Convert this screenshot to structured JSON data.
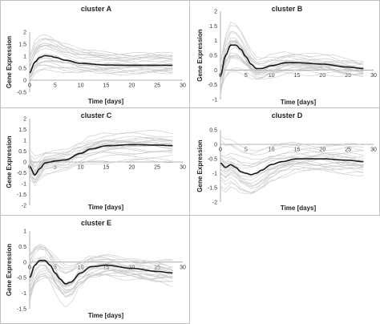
{
  "chart_data": [
    {
      "type": "line",
      "title": "cluster A",
      "xlabel": "Time [days]",
      "ylabel": "Gene Expression",
      "xlim": [
        0,
        30
      ],
      "ylim": [
        -0.5,
        2
      ],
      "x_ticks": [
        0,
        5,
        10,
        15,
        20,
        25,
        30
      ],
      "y_ticks": [
        -0.5,
        0,
        0.5,
        1,
        1.5,
        2
      ],
      "grid": false,
      "mean_series": {
        "x": [
          0,
          1,
          2,
          3,
          4,
          5,
          7,
          10,
          15,
          20,
          25,
          28
        ],
        "y": [
          0.3,
          0.75,
          0.95,
          1.02,
          1.0,
          0.95,
          0.83,
          0.7,
          0.63,
          0.62,
          0.62,
          0.62
        ]
      },
      "spread": 0.35
    },
    {
      "type": "line",
      "title": "cluster B",
      "xlabel": "Time [days]",
      "ylabel": "Gene Expression",
      "xlim": [
        0,
        30
      ],
      "ylim": [
        -1,
        2
      ],
      "x_ticks": [
        0,
        5,
        10,
        15,
        20,
        25,
        30
      ],
      "y_ticks": [
        -1,
        -0.5,
        0,
        0.5,
        1,
        1.5,
        2
      ],
      "grid": false,
      "mean_series": {
        "x": [
          0,
          1,
          2,
          3,
          4,
          5,
          6,
          7,
          8,
          10,
          13,
          15,
          20,
          25,
          28
        ],
        "y": [
          -0.2,
          0.5,
          0.85,
          0.85,
          0.7,
          0.45,
          0.2,
          0.05,
          0.05,
          0.15,
          0.25,
          0.25,
          0.2,
          0.1,
          0.05
        ]
      },
      "spread": 0.35
    },
    {
      "type": "line",
      "title": "cluster C",
      "xlabel": "Time [days]",
      "ylabel": "Gene Expression",
      "xlim": [
        0,
        30
      ],
      "ylim": [
        -2,
        2
      ],
      "x_ticks": [
        0,
        5,
        10,
        15,
        20,
        25,
        30
      ],
      "y_ticks": [
        -2,
        -1.5,
        -1,
        -0.5,
        0,
        0.5,
        1,
        1.5,
        2
      ],
      "grid": false,
      "mean_series": {
        "x": [
          0,
          1,
          2,
          3,
          4,
          5,
          7,
          10,
          12,
          15,
          20,
          25,
          28
        ],
        "y": [
          -0.2,
          -0.6,
          -0.3,
          -0.05,
          0.0,
          0.05,
          0.1,
          0.4,
          0.6,
          0.75,
          0.8,
          0.78,
          0.75
        ]
      },
      "spread": 0.45
    },
    {
      "type": "line",
      "title": "cluster D",
      "xlabel": "Time [days]",
      "ylabel": "Gene Expression",
      "xlim": [
        0,
        30
      ],
      "ylim": [
        -2,
        0.5
      ],
      "x_ticks": [
        0,
        5,
        10,
        15,
        20,
        25,
        30
      ],
      "y_ticks": [
        -2,
        -1.5,
        -1,
        -0.5,
        0,
        0.5
      ],
      "grid": false,
      "mean_series": {
        "x": [
          0,
          1,
          2,
          3,
          4,
          5,
          6,
          7,
          8,
          10,
          12,
          15,
          20,
          25,
          28
        ],
        "y": [
          -0.65,
          -0.8,
          -0.7,
          -0.8,
          -0.95,
          -1.0,
          -1.05,
          -1.0,
          -0.9,
          -0.7,
          -0.6,
          -0.5,
          -0.5,
          -0.55,
          -0.6
        ]
      },
      "spread": 0.35
    },
    {
      "type": "line",
      "title": "cluster E",
      "xlabel": "Time [days]",
      "ylabel": "Gene Expression",
      "xlim": [
        0,
        30
      ],
      "ylim": [
        -1.5,
        1
      ],
      "x_ticks": [
        0,
        5,
        10,
        15,
        20,
        25,
        30
      ],
      "y_ticks": [
        -1.5,
        -1,
        -0.5,
        0,
        0.5,
        1
      ],
      "grid": false,
      "mean_series": {
        "x": [
          0,
          1,
          2,
          3,
          4,
          5,
          6,
          7,
          8,
          10,
          12,
          15,
          20,
          25,
          28
        ],
        "y": [
          -0.5,
          -0.1,
          0.05,
          0.05,
          -0.1,
          -0.35,
          -0.55,
          -0.7,
          -0.65,
          -0.35,
          -0.15,
          -0.1,
          -0.2,
          -0.3,
          -0.35
        ]
      },
      "spread": 0.4
    }
  ]
}
